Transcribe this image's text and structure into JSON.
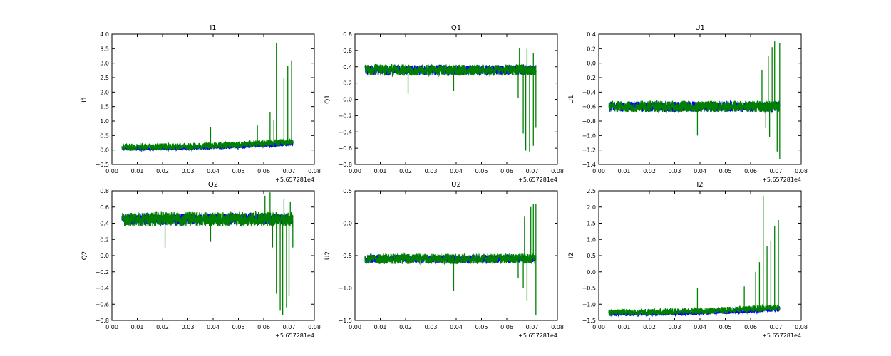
{
  "chart_data": [
    {
      "type": "line",
      "title": "I1",
      "ylabel": "I1",
      "xlabel": "",
      "x_offset_label": "+5.657281e4",
      "xlim": [
        0.0,
        0.08
      ],
      "ylim": [
        -0.5,
        4.0
      ],
      "x_ticks": [
        "0.00",
        "0.01",
        "0.02",
        "0.03",
        "0.04",
        "0.05",
        "0.06",
        "0.07",
        "0.08"
      ],
      "y_ticks": [
        "−0.5",
        "0.0",
        "0.5",
        "1.0",
        "1.5",
        "2.0",
        "2.5",
        "3.0",
        "3.5",
        "4.0"
      ],
      "series": [
        {
          "name": "blue",
          "color": "#0000ff",
          "x_range": [
            0.004,
            0.0715
          ],
          "base": [
            0.05,
            0.22
          ],
          "jitter": 0.07,
          "spikes": [
            [
              0.038,
              0.0
            ],
            [
              0.0715,
              0.3
            ]
          ]
        },
        {
          "name": "green",
          "color": "#008000",
          "x_range": [
            0.004,
            0.0715
          ],
          "base": [
            0.1,
            0.28
          ],
          "jitter": 0.12,
          "spikes": [
            [
              0.039,
              0.8
            ],
            [
              0.0575,
              0.85
            ],
            [
              0.0625,
              1.3
            ],
            [
              0.065,
              3.7
            ],
            [
              0.068,
              2.5
            ],
            [
              0.0695,
              2.9
            ],
            [
              0.071,
              3.1
            ],
            [
              0.064,
              1.05
            ]
          ]
        }
      ]
    },
    {
      "type": "line",
      "title": "Q1",
      "ylabel": "Q1",
      "xlabel": "",
      "x_offset_label": "+5.657281e4",
      "xlim": [
        0.0,
        0.08
      ],
      "ylim": [
        -0.8,
        0.8
      ],
      "x_ticks": [
        "0.00",
        "0.01",
        "0.02",
        "0.03",
        "0.04",
        "0.05",
        "0.06",
        "0.07",
        "0.08"
      ],
      "y_ticks": [
        "−0.8",
        "−0.6",
        "−0.4",
        "−0.2",
        "0.0",
        "0.2",
        "0.4",
        "0.6",
        "0.8"
      ],
      "series": [
        {
          "name": "blue",
          "color": "#0000ff",
          "x_range": [
            0.004,
            0.0715
          ],
          "base": [
            0.36,
            0.36
          ],
          "jitter": 0.06,
          "spikes": []
        },
        {
          "name": "green",
          "color": "#008000",
          "x_range": [
            0.004,
            0.0715
          ],
          "base": [
            0.36,
            0.36
          ],
          "jitter": 0.07,
          "spikes": [
            [
              0.021,
              0.07
            ],
            [
              0.039,
              0.1
            ],
            [
              0.0645,
              0.02
            ],
            [
              0.0665,
              -0.42
            ],
            [
              0.0675,
              -0.63
            ],
            [
              0.069,
              -0.64
            ],
            [
              0.0705,
              -0.57
            ],
            [
              0.0715,
              -0.35
            ],
            [
              0.065,
              0.63
            ],
            [
              0.068,
              0.62
            ],
            [
              0.0705,
              0.57
            ]
          ]
        }
      ]
    },
    {
      "type": "line",
      "title": "U1",
      "ylabel": "U1",
      "xlabel": "",
      "x_offset_label": "+5.657281e4",
      "xlim": [
        0.0,
        0.08
      ],
      "ylim": [
        -1.4,
        0.4
      ],
      "x_ticks": [
        "0.00",
        "0.01",
        "0.02",
        "0.03",
        "0.04",
        "0.05",
        "0.06",
        "0.07",
        "0.08"
      ],
      "y_ticks": [
        "−1.4",
        "−1.2",
        "−1.0",
        "−0.8",
        "−0.6",
        "−0.4",
        "−0.2",
        "0.0",
        "0.2",
        "0.4"
      ],
      "series": [
        {
          "name": "blue",
          "color": "#0000ff",
          "x_range": [
            0.004,
            0.0715
          ],
          "base": [
            -0.6,
            -0.6
          ],
          "jitter": 0.07,
          "spikes": []
        },
        {
          "name": "green",
          "color": "#008000",
          "x_range": [
            0.004,
            0.0715
          ],
          "base": [
            -0.6,
            -0.6
          ],
          "jitter": 0.08,
          "spikes": [
            [
              0.039,
              -1.0
            ],
            [
              0.0645,
              -0.1
            ],
            [
              0.066,
              -0.9
            ],
            [
              0.0675,
              -1.02
            ],
            [
              0.0685,
              0.22
            ],
            [
              0.0695,
              0.3
            ],
            [
              0.0705,
              -1.22
            ],
            [
              0.0715,
              -1.33
            ],
            [
              0.0715,
              0.28
            ],
            [
              0.067,
              0.1
            ]
          ]
        }
      ]
    },
    {
      "type": "line",
      "title": "Q2",
      "ylabel": "Q2",
      "xlabel": "",
      "x_offset_label": "+5.657281e4",
      "xlim": [
        0.0,
        0.08
      ],
      "ylim": [
        -0.8,
        0.8
      ],
      "x_ticks": [
        "0.00",
        "0.01",
        "0.02",
        "0.03",
        "0.04",
        "0.05",
        "0.06",
        "0.07",
        "0.08"
      ],
      "y_ticks": [
        "−0.8",
        "−0.6",
        "−0.4",
        "−0.2",
        "0.0",
        "0.2",
        "0.4",
        "0.6",
        "0.8"
      ],
      "series": [
        {
          "name": "blue",
          "color": "#0000ff",
          "x_range": [
            0.004,
            0.0715
          ],
          "base": [
            0.45,
            0.45
          ],
          "jitter": 0.07,
          "spikes": []
        },
        {
          "name": "green",
          "color": "#008000",
          "x_range": [
            0.004,
            0.0715
          ],
          "base": [
            0.45,
            0.45
          ],
          "jitter": 0.09,
          "spikes": [
            [
              0.021,
              0.1
            ],
            [
              0.039,
              0.17
            ],
            [
              0.0605,
              0.74
            ],
            [
              0.0625,
              0.78
            ],
            [
              0.0635,
              0.1
            ],
            [
              0.065,
              -0.47
            ],
            [
              0.0665,
              -0.68
            ],
            [
              0.0675,
              -0.73
            ],
            [
              0.069,
              -0.64
            ],
            [
              0.07,
              -0.5
            ],
            [
              0.0715,
              0.1
            ],
            [
              0.068,
              0.7
            ],
            [
              0.0705,
              0.66
            ]
          ]
        }
      ]
    },
    {
      "type": "line",
      "title": "U2",
      "ylabel": "U2",
      "xlabel": "",
      "x_offset_label": "+5.657281e4",
      "xlim": [
        0.0,
        0.08
      ],
      "ylim": [
        -1.5,
        0.5
      ],
      "x_ticks": [
        "0.00",
        "0.01",
        "0.02",
        "0.03",
        "0.04",
        "0.05",
        "0.06",
        "0.07",
        "0.08"
      ],
      "y_ticks": [
        "−1.5",
        "−1.0",
        "−0.5",
        "0.0",
        "0.5"
      ],
      "series": [
        {
          "name": "blue",
          "color": "#0000ff",
          "x_range": [
            0.004,
            0.0715
          ],
          "base": [
            -0.55,
            -0.55
          ],
          "jitter": 0.06,
          "spikes": []
        },
        {
          "name": "green",
          "color": "#008000",
          "x_range": [
            0.004,
            0.0715
          ],
          "base": [
            -0.55,
            -0.55
          ],
          "jitter": 0.08,
          "spikes": [
            [
              0.039,
              -1.05
            ],
            [
              0.0645,
              -0.85
            ],
            [
              0.0665,
              -1.0
            ],
            [
              0.068,
              -1.2
            ],
            [
              0.0695,
              0.25
            ],
            [
              0.0705,
              0.3
            ],
            [
              0.0715,
              -1.42
            ],
            [
              0.0715,
              0.3
            ],
            [
              0.067,
              0.1
            ]
          ]
        }
      ]
    },
    {
      "type": "line",
      "title": "I2",
      "ylabel": "I2",
      "xlabel": "",
      "x_offset_label": "+5.657281e4",
      "xlim": [
        0.0,
        0.08
      ],
      "ylim": [
        -1.5,
        2.5
      ],
      "x_ticks": [
        "0.00",
        "0.01",
        "0.02",
        "0.03",
        "0.04",
        "0.05",
        "0.06",
        "0.07",
        "0.08"
      ],
      "y_ticks": [
        "−1.5",
        "−1.0",
        "−0.5",
        "0.0",
        "0.5",
        "1.0",
        "1.5",
        "2.0",
        "2.5"
      ],
      "series": [
        {
          "name": "blue",
          "color": "#0000ff",
          "x_range": [
            0.004,
            0.0715
          ],
          "base": [
            -1.3,
            -1.15
          ],
          "jitter": 0.07,
          "spikes": []
        },
        {
          "name": "green",
          "color": "#008000",
          "x_range": [
            0.004,
            0.0715
          ],
          "base": [
            -1.25,
            -1.1
          ],
          "jitter": 0.1,
          "spikes": [
            [
              0.039,
              -0.5
            ],
            [
              0.0575,
              -0.45
            ],
            [
              0.062,
              0.0
            ],
            [
              0.0635,
              0.3
            ],
            [
              0.065,
              2.35
            ],
            [
              0.0665,
              0.8
            ],
            [
              0.068,
              0.95
            ],
            [
              0.0695,
              1.4
            ],
            [
              0.071,
              1.6
            ]
          ]
        }
      ]
    }
  ]
}
